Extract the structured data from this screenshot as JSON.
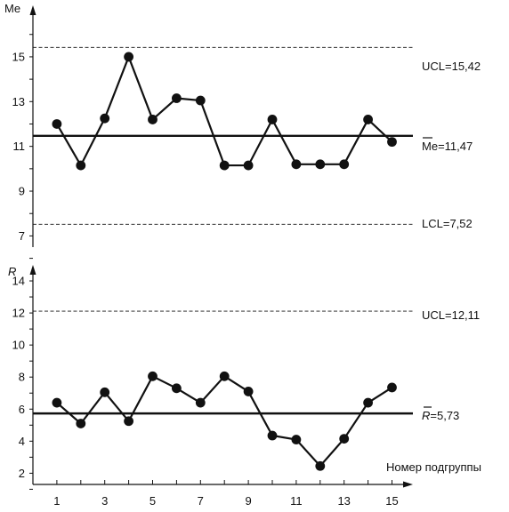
{
  "chart_data": [
    {
      "type": "line",
      "ylabel": "Me",
      "y_ticks": [
        "7",
        "9",
        "11",
        "13",
        "15"
      ],
      "ylim": [
        6.5,
        17.3
      ],
      "x": [
        1,
        2,
        3,
        4,
        5,
        6,
        7,
        8,
        9,
        10,
        11,
        12,
        13,
        14,
        15
      ],
      "values": [
        12.0,
        10.15,
        12.25,
        15.0,
        12.2,
        13.15,
        13.05,
        10.15,
        10.15,
        12.2,
        10.2,
        10.2,
        10.2,
        12.2,
        11.2
      ],
      "center": {
        "value": 11.47,
        "label_prefix": "Me",
        "label_value": "=11,47"
      },
      "ucl": {
        "value": 15.42,
        "label": "UCL=15,42"
      },
      "lcl": {
        "value": 7.52,
        "label": "LCL=7,52"
      },
      "grid": false
    },
    {
      "type": "line",
      "ylabel": "R",
      "y_ticks": [
        "2",
        "4",
        "6",
        "8",
        "10",
        "12",
        "14"
      ],
      "ylim": [
        1.3,
        15.0
      ],
      "x": [
        1,
        2,
        3,
        4,
        5,
        6,
        7,
        8,
        9,
        10,
        11,
        12,
        13,
        14,
        15
      ],
      "x_ticks": [
        "1",
        "3",
        "5",
        "7",
        "9",
        "11",
        "13",
        "15"
      ],
      "xlabel": "Номер подгруппы",
      "values": [
        6.4,
        5.1,
        7.05,
        5.25,
        8.05,
        7.3,
        6.4,
        8.05,
        7.1,
        4.35,
        4.1,
        2.45,
        4.15,
        6.4,
        7.35
      ],
      "center": {
        "value": 5.73,
        "label_prefix": "R",
        "label_value": "=5,73"
      },
      "ucl": {
        "value": 12.11,
        "label": "UCL=12,11"
      },
      "grid": false
    }
  ]
}
